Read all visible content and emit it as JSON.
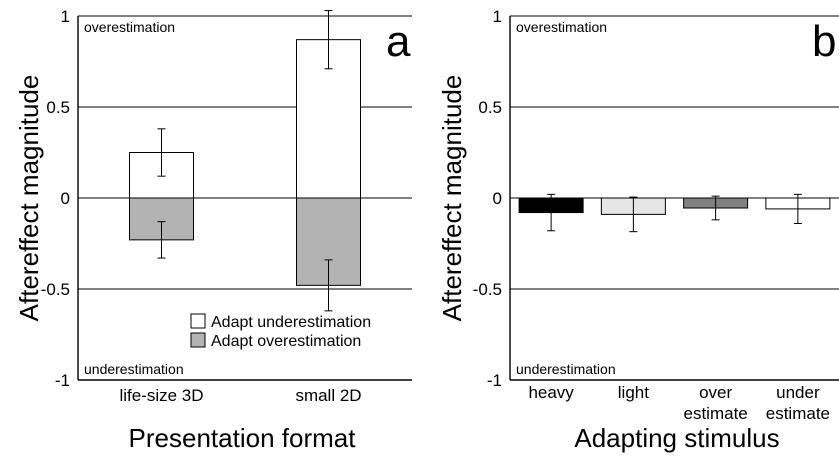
{
  "chart_data": [
    {
      "type": "bar",
      "panel_label": "a",
      "xlabel": "Presentation format",
      "ylabel": "Aftereffect magnitude",
      "ylim": [
        -1,
        1
      ],
      "yticks": [
        "1",
        "0.5",
        "0",
        "-0.5",
        "-1"
      ],
      "top_annotation": "overestimation",
      "bottom_annotation": "underestimation",
      "categories": [
        "life-size 3D",
        "small 2D"
      ],
      "series": [
        {
          "name": "Adapt underestimation",
          "color": "#ffffff",
          "values": [
            0.25,
            0.87
          ],
          "error": [
            0.13,
            0.16
          ]
        },
        {
          "name": "Adapt overestimation",
          "color": "#b3b3b3",
          "values": [
            -0.23,
            -0.48
          ],
          "error": [
            0.1,
            0.14
          ]
        }
      ],
      "legend_position": "bottom-right",
      "grid": "horizontal"
    },
    {
      "type": "bar",
      "panel_label": "b",
      "xlabel": "Adapting stimulus",
      "ylabel": "Aftereffect magnitude",
      "ylim": [
        -1,
        1
      ],
      "yticks": [
        "1",
        "0.5",
        "0",
        "-0.5",
        "-1"
      ],
      "top_annotation": "overestimation",
      "bottom_annotation": "underestimation",
      "categories": [
        [
          "heavy"
        ],
        [
          "light"
        ],
        [
          "over",
          "estimate"
        ],
        [
          "under",
          "estimate"
        ]
      ],
      "values": [
        -0.08,
        -0.09,
        -0.055,
        -0.06
      ],
      "error": [
        0.1,
        0.095,
        0.065,
        0.08
      ],
      "colors": [
        "#000000",
        "#e6e6e6",
        "#808080",
        "#ffffff"
      ],
      "grid": "horizontal"
    }
  ]
}
